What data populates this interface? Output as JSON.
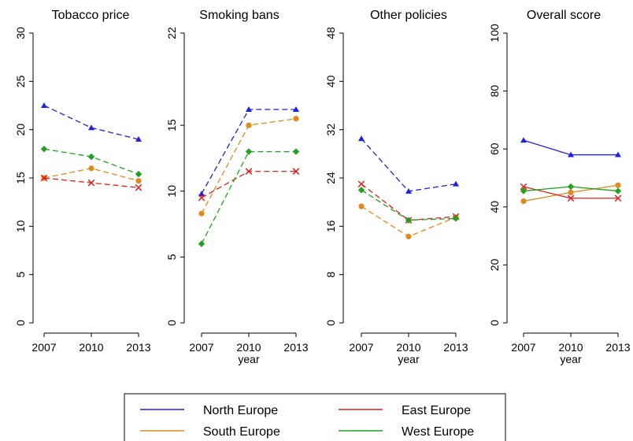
{
  "colors": {
    "North Europe": "#1f1fe6",
    "South Europe": "#e08a1e",
    "East Europe": "#e61f1f",
    "West Europe": "#1fa31f"
  },
  "markers": {
    "North Europe": "triangle",
    "South Europe": "circle",
    "East Europe": "cross",
    "West Europe": "diamond"
  },
  "legend": {
    "entries": [
      "North Europe",
      "East Europe",
      "South Europe",
      "West Europe"
    ],
    "placement": "bottom"
  },
  "chart_data": [
    {
      "type": "line",
      "title": "Tobacco price",
      "xlabel": "",
      "ylabel": "",
      "x": [
        2007,
        2010,
        2013
      ],
      "yticks": [
        0,
        5,
        10,
        15,
        20,
        25,
        30
      ],
      "ylim": [
        0,
        30
      ],
      "line_style": "dashed",
      "series": [
        {
          "name": "North Europe",
          "values": [
            22.5,
            20.2,
            19.0
          ]
        },
        {
          "name": "South Europe",
          "values": [
            15.0,
            16.0,
            14.7
          ]
        },
        {
          "name": "East Europe",
          "values": [
            15.0,
            14.5,
            14.0
          ]
        },
        {
          "name": "West Europe",
          "values": [
            18.0,
            17.2,
            15.4
          ]
        }
      ]
    },
    {
      "type": "line",
      "title": "Smoking bans",
      "xlabel": "year",
      "ylabel": "",
      "x": [
        2007,
        2010,
        2013
      ],
      "yticks": [
        0,
        5,
        10,
        15,
        22
      ],
      "ylim": [
        0,
        22
      ],
      "line_style": "dashed",
      "series": [
        {
          "name": "North Europe",
          "values": [
            9.8,
            16.2,
            16.2
          ]
        },
        {
          "name": "South Europe",
          "values": [
            8.3,
            15.0,
            15.5
          ]
        },
        {
          "name": "East Europe",
          "values": [
            9.5,
            11.5,
            11.5
          ]
        },
        {
          "name": "West Europe",
          "values": [
            6.0,
            13.0,
            13.0
          ]
        }
      ]
    },
    {
      "type": "line",
      "title": "Other policies",
      "xlabel": "year",
      "ylabel": "",
      "x": [
        2007,
        2010,
        2013
      ],
      "yticks": [
        0,
        8,
        16,
        24,
        32,
        40,
        48
      ],
      "ylim": [
        0,
        48
      ],
      "line_style": "dashed",
      "series": [
        {
          "name": "North Europe",
          "values": [
            30.5,
            21.8,
            23.0
          ]
        },
        {
          "name": "South Europe",
          "values": [
            19.3,
            14.3,
            17.5
          ]
        },
        {
          "name": "East Europe",
          "values": [
            23.0,
            17.0,
            17.6
          ]
        },
        {
          "name": "West Europe",
          "values": [
            22.0,
            17.0,
            17.3
          ]
        }
      ]
    },
    {
      "type": "line",
      "title": "Overall score",
      "xlabel": "year",
      "ylabel": "",
      "x": [
        2007,
        2010,
        2013
      ],
      "yticks": [
        0,
        20,
        40,
        60,
        80,
        100
      ],
      "ylim": [
        0,
        100
      ],
      "line_style": "solid",
      "series": [
        {
          "name": "North Europe",
          "values": [
            63,
            58,
            58
          ]
        },
        {
          "name": "South Europe",
          "values": [
            42,
            45,
            47.5
          ]
        },
        {
          "name": "East Europe",
          "values": [
            47,
            43,
            43
          ]
        },
        {
          "name": "West Europe",
          "values": [
            45.5,
            47,
            45.5
          ]
        }
      ]
    }
  ]
}
